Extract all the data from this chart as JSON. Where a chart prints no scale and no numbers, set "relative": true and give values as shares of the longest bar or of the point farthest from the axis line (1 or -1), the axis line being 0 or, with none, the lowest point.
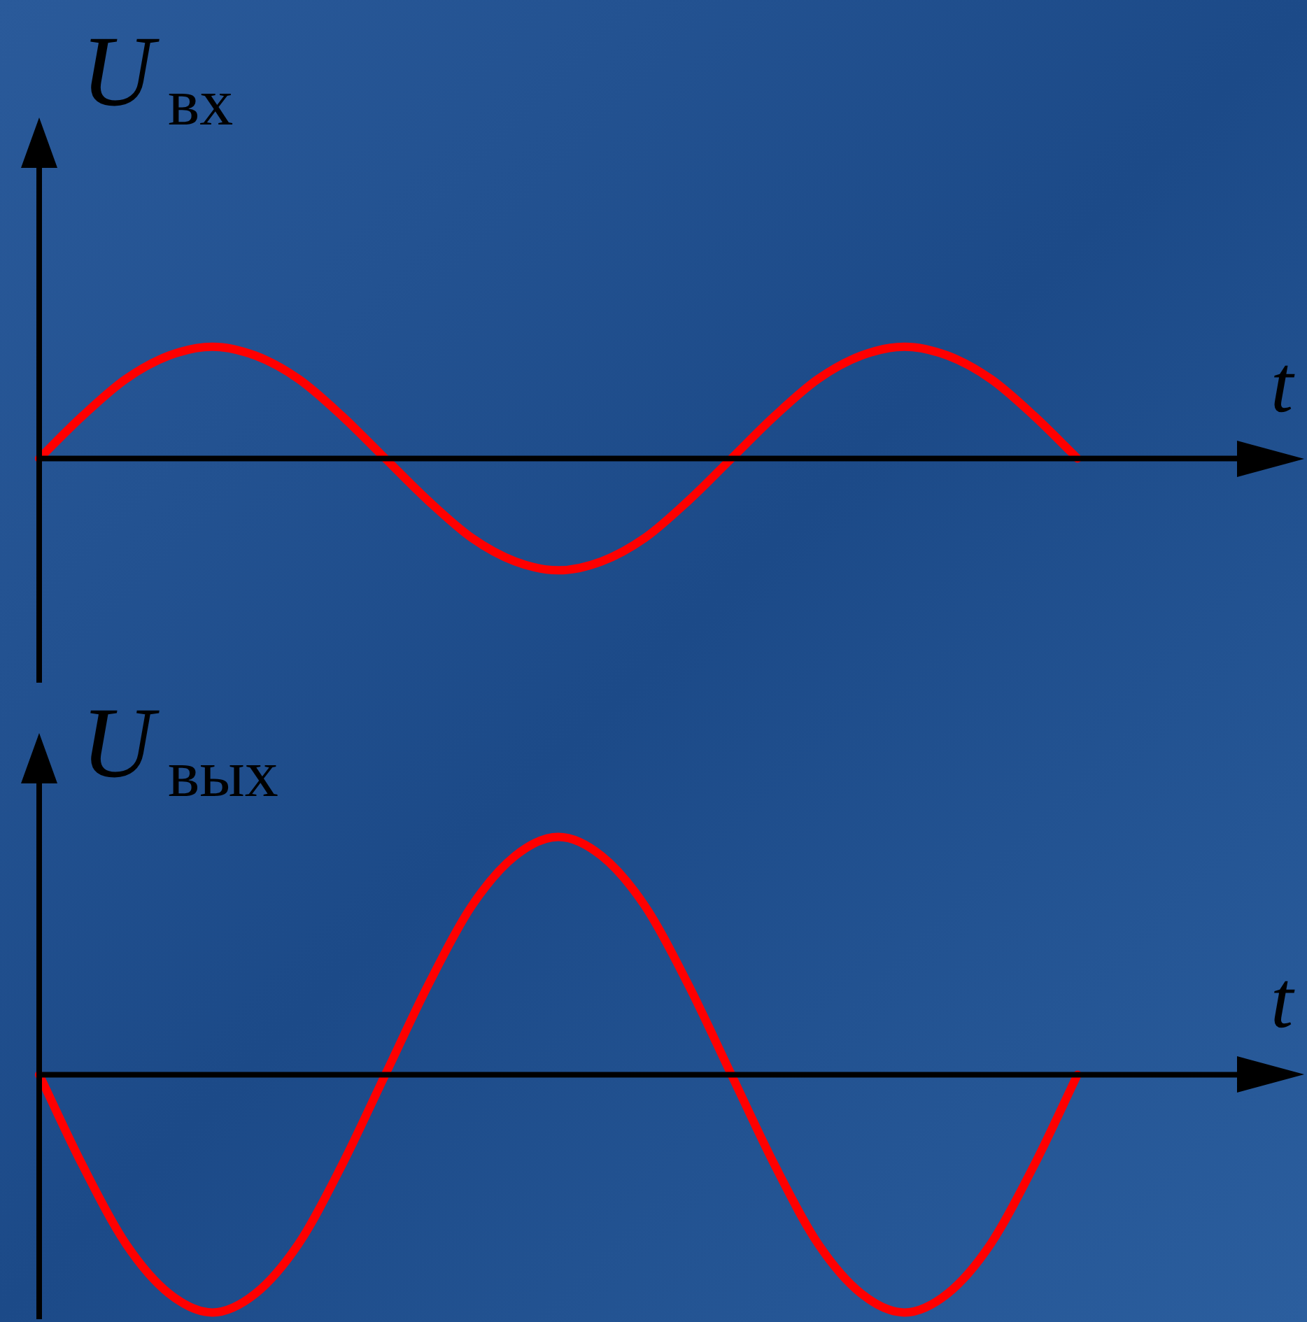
{
  "chart_data": [
    {
      "type": "line",
      "ylabel": "U$_{вх}$",
      "xlabel": "t",
      "relative": true,
      "tick_labels": false,
      "categories": [
        null,
        null,
        null,
        null,
        null,
        null,
        null,
        null,
        null,
        null,
        null,
        null,
        null,
        null,
        null,
        null,
        null,
        null,
        null,
        null,
        null,
        null,
        null,
        null,
        null
      ],
      "series": [
        {
          "color": "#ff0000",
          "values": [
            0,
            0.38,
            0.71,
            0.92,
            1,
            0.92,
            0.71,
            0.38,
            0,
            -0.38,
            -0.71,
            -0.92,
            -1,
            -0.92,
            -0.71,
            -0.38,
            0,
            0.38,
            0.71,
            0.92,
            1,
            0.92,
            0.71,
            0.38,
            0
          ]
        }
      ]
    },
    {
      "type": "line",
      "ylabel": "U$_{вых}$",
      "xlabel": "t",
      "relative": true,
      "tick_labels": false,
      "categories": [
        null,
        null,
        null,
        null,
        null,
        null,
        null,
        null,
        null,
        null,
        null,
        null,
        null,
        null,
        null,
        null,
        null,
        null,
        null,
        null,
        null,
        null,
        null,
        null,
        null
      ],
      "series": [
        {
          "color": "#ff0000",
          "values": [
            0,
            -0.38,
            -0.71,
            -0.92,
            -1,
            -0.92,
            -0.71,
            -0.38,
            0,
            0.38,
            0.71,
            0.92,
            1,
            0.92,
            0.71,
            0.38,
            0,
            -0.38,
            -0.71,
            -0.92,
            -1,
            -0.92,
            -0.71,
            -0.38,
            0
          ]
        }
      ]
    }
  ]
}
